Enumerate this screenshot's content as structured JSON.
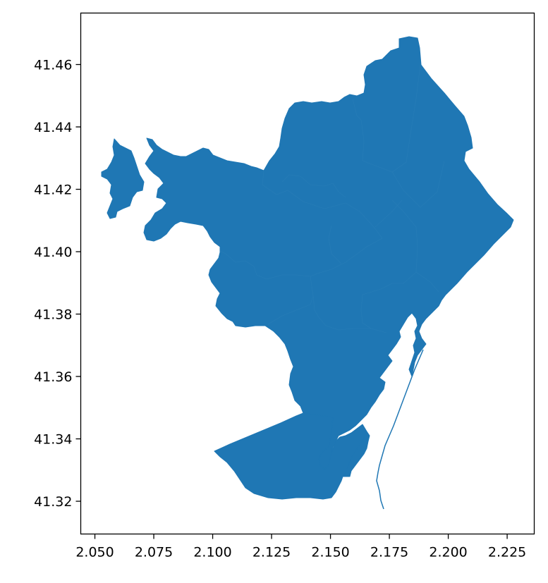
{
  "chart_data": {
    "type": "map",
    "title": "",
    "xlabel": "",
    "ylabel": "",
    "xlim": [
      2.044,
      2.2365
    ],
    "ylim": [
      41.3095,
      41.4765
    ],
    "x_ticks": [
      {
        "value": 2.05,
        "label": "2.050"
      },
      {
        "value": 2.075,
        "label": "2.075"
      },
      {
        "value": 2.1,
        "label": "2.100"
      },
      {
        "value": 2.125,
        "label": "2.125"
      },
      {
        "value": 2.15,
        "label": "2.150"
      },
      {
        "value": 2.175,
        "label": "2.175"
      },
      {
        "value": 2.2,
        "label": "2.200"
      },
      {
        "value": 2.225,
        "label": "2.225"
      }
    ],
    "y_ticks": [
      {
        "value": 41.32,
        "label": "41.32"
      },
      {
        "value": 41.34,
        "label": "41.34"
      },
      {
        "value": 41.36,
        "label": "41.36"
      },
      {
        "value": 41.38,
        "label": "41.38"
      },
      {
        "value": 41.4,
        "label": "41.40"
      },
      {
        "value": 41.42,
        "label": "41.42"
      },
      {
        "value": 41.44,
        "label": "41.44"
      },
      {
        "value": 41.46,
        "label": "41.46"
      }
    ],
    "grid": false,
    "fill_color": "#1f77b4",
    "district_count": 10
  }
}
